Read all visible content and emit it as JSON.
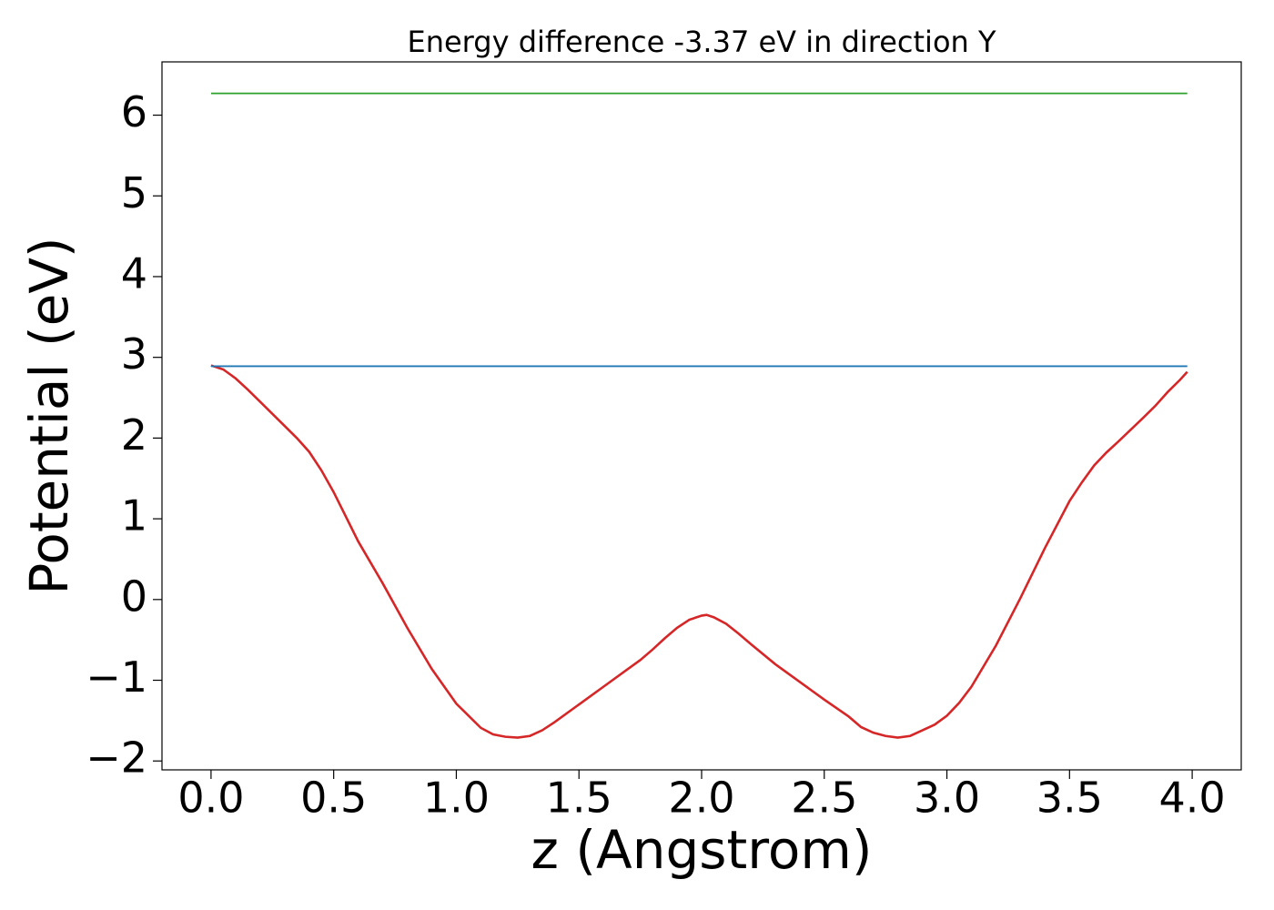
{
  "chart_data": {
    "type": "line",
    "title": "Energy difference -3.37 eV in direction Y",
    "xlabel": "z (Angstrom)",
    "ylabel": "Potential (eV)",
    "xlim": [
      -0.2,
      4.2
    ],
    "ylim": [
      -2.11,
      6.66
    ],
    "xticks": [
      {
        "value": 0,
        "label": "0.0"
      },
      {
        "value": 0.5,
        "label": "0.5"
      },
      {
        "value": 1,
        "label": "1.0"
      },
      {
        "value": 1.5,
        "label": "1.5"
      },
      {
        "value": 2,
        "label": "2.0"
      },
      {
        "value": 2.5,
        "label": "2.5"
      },
      {
        "value": 3,
        "label": "3.0"
      },
      {
        "value": 3.5,
        "label": "3.5"
      },
      {
        "value": 4,
        "label": "4.0"
      }
    ],
    "yticks": [
      {
        "value": -2,
        "label": "−2"
      },
      {
        "value": -1,
        "label": "−1"
      },
      0,
      1,
      2,
      3,
      4,
      5,
      6
    ],
    "grid": false,
    "series": [
      {
        "color": "#d62728",
        "x": [
          0,
          0.05,
          0.1,
          0.15,
          0.2,
          0.3,
          0.35,
          0.4,
          0.45,
          0.5,
          0.6,
          0.7,
          0.8,
          0.9,
          1.0,
          1.05,
          1.1,
          1.15,
          1.2,
          1.25,
          1.3,
          1.35,
          1.4,
          1.5,
          1.6,
          1.7,
          1.75,
          1.8,
          1.85,
          1.9,
          1.95,
          2.0,
          2.02,
          2.05,
          2.1,
          2.15,
          2.2,
          2.3,
          2.4,
          2.5,
          2.6,
          2.65,
          2.7,
          2.75,
          2.8,
          2.85,
          2.9,
          2.95,
          3.0,
          3.05,
          3.1,
          3.2,
          3.3,
          3.4,
          3.5,
          3.55,
          3.6,
          3.65,
          3.7,
          3.8,
          3.85,
          3.9,
          3.95,
          3.98
        ],
        "values": [
          2.9,
          2.85,
          2.74,
          2.6,
          2.45,
          2.15,
          2.0,
          1.83,
          1.6,
          1.33,
          0.72,
          0.2,
          -0.35,
          -0.86,
          -1.29,
          -1.44,
          -1.59,
          -1.67,
          -1.7,
          -1.71,
          -1.69,
          -1.62,
          -1.52,
          -1.3,
          -1.08,
          -0.86,
          -0.75,
          -0.62,
          -0.48,
          -0.35,
          -0.25,
          -0.2,
          -0.19,
          -0.22,
          -0.3,
          -0.42,
          -0.55,
          -0.8,
          -1.02,
          -1.24,
          -1.45,
          -1.58,
          -1.65,
          -1.69,
          -1.71,
          -1.69,
          -1.62,
          -1.55,
          -1.44,
          -1.28,
          -1.08,
          -0.57,
          0.02,
          0.64,
          1.22,
          1.45,
          1.66,
          1.82,
          1.96,
          2.25,
          2.4,
          2.57,
          2.72,
          2.82
        ]
      },
      {
        "color": "#1f77b4",
        "x": [
          0,
          3.98
        ],
        "values": [
          2.89,
          2.89
        ]
      },
      {
        "color": "#2ca02c",
        "x": [
          0,
          3.98
        ],
        "values": [
          6.27,
          6.27
        ]
      }
    ]
  }
}
